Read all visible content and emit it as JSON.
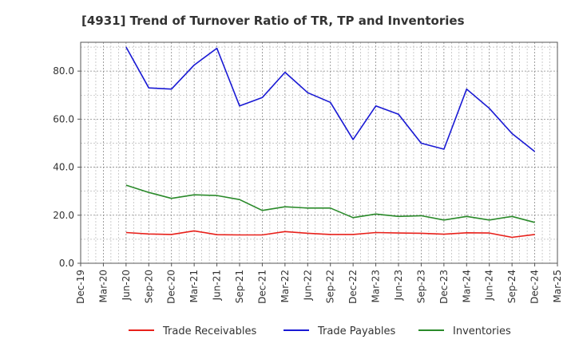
{
  "chart_data": {
    "type": "line",
    "title": "[4931]  Trend of Turnover Ratio of TR, TP and Inventories",
    "xlabel": "",
    "ylabel": "",
    "ylim": [
      0,
      92
    ],
    "yticks": [
      0,
      20,
      40,
      60,
      80
    ],
    "ytick_labels": [
      "0.0",
      "20.0",
      "40.0",
      "60.0",
      "80.0"
    ],
    "x_labels": [
      "Dec-19",
      "Mar-20",
      "Jun-20",
      "Sep-20",
      "Dec-20",
      "Mar-21",
      "Jun-21",
      "Sep-21",
      "Dec-21",
      "Mar-22",
      "Jun-22",
      "Sep-22",
      "Dec-22",
      "Mar-23",
      "Jun-23",
      "Sep-23",
      "Dec-23",
      "Mar-24",
      "Jun-24",
      "Sep-24",
      "Dec-24",
      "Mar-25"
    ],
    "x": [
      "Dec-19",
      "Mar-20",
      "Jun-20",
      "Sep-20",
      "Dec-20",
      "Mar-21",
      "Jun-21",
      "Sep-21",
      "Dec-21",
      "Mar-22",
      "Jun-22",
      "Sep-22",
      "Dec-22",
      "Mar-23",
      "Jun-23",
      "Sep-23",
      "Dec-23",
      "Mar-24",
      "Jun-24",
      "Sep-24",
      "Dec-24",
      "Mar-25"
    ],
    "grid": true,
    "legend_position": "bottom",
    "series": [
      {
        "name": "Trade Receivables",
        "color": "#e8201a",
        "values": [
          null,
          null,
          12.8,
          12.2,
          12.0,
          13.5,
          11.9,
          11.8,
          11.8,
          13.2,
          12.5,
          12.0,
          12.0,
          12.8,
          12.6,
          12.5,
          12.1,
          12.7,
          12.6,
          10.8,
          12.0,
          null
        ]
      },
      {
        "name": "Trade Payables",
        "color": "#1919d4",
        "values": [
          null,
          null,
          90.0,
          73.0,
          72.5,
          82.5,
          89.5,
          65.5,
          69.0,
          79.5,
          71.0,
          67.0,
          51.5,
          65.5,
          62.0,
          50.0,
          47.5,
          72.5,
          64.5,
          54.0,
          46.5,
          null
        ]
      },
      {
        "name": "Inventories",
        "color": "#2a8a2a",
        "values": [
          null,
          null,
          32.5,
          29.5,
          27.0,
          28.5,
          28.2,
          26.5,
          22.0,
          23.5,
          23.0,
          23.0,
          19.0,
          20.5,
          19.5,
          19.8,
          18.0,
          19.5,
          18.0,
          19.5,
          17.0,
          null
        ]
      }
    ]
  }
}
